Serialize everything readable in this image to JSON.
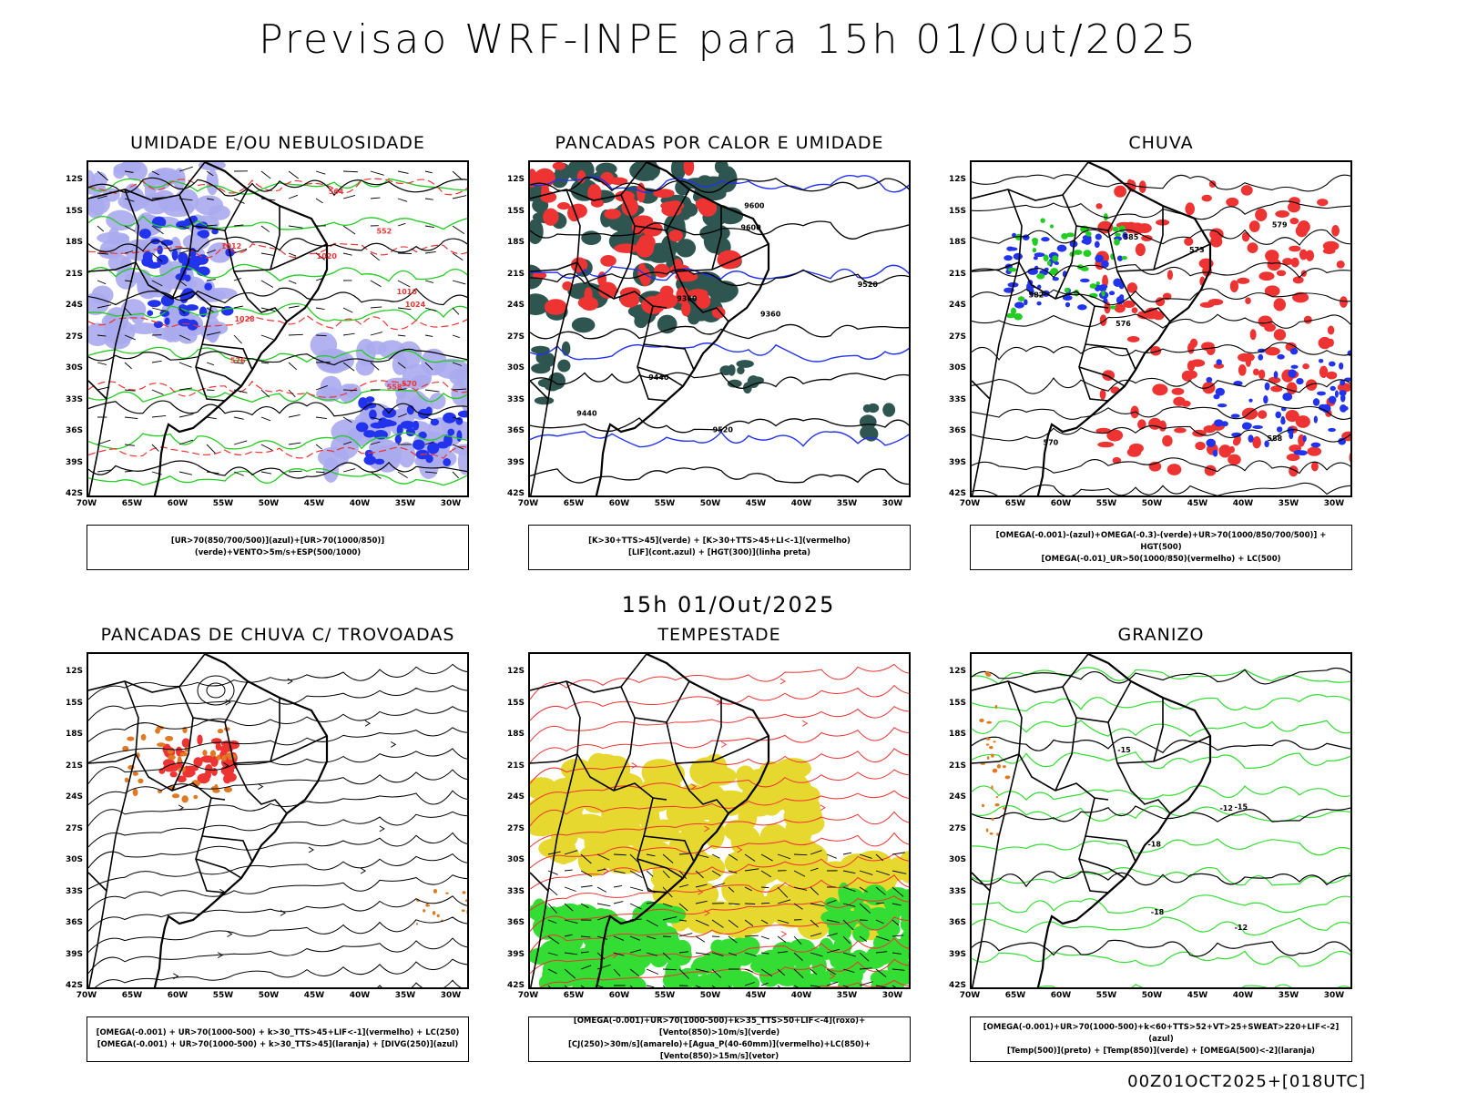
{
  "main_title": "Previsao WRF-INPE  para 15h 01/Out/2025",
  "mid_title": "15h 01/Out/2025",
  "footer": "00Z01OCT2025+[018UTC]",
  "lat_labels": [
    "12S",
    "15S",
    "18S",
    "21S",
    "24S",
    "27S",
    "30S",
    "33S",
    "36S",
    "39S",
    "42S"
  ],
  "lon_labels": [
    "70W",
    "65W",
    "60W",
    "55W",
    "50W",
    "45W",
    "40W",
    "35W",
    "30W"
  ],
  "panels": [
    {
      "title": "UMIDADE E/OU NEBULOSIDADE",
      "legend1": "[UR>70(850/700/500)](azul)+[UR>70(1000/850)](verde)+VENTO>5m/s+ESP(500/1000)",
      "legend2": "",
      "contour_labels": [
        "1012",
        "1016",
        "1020",
        "1024",
        "1028",
        "570",
        "576",
        "564",
        "558",
        "552"
      ]
    },
    {
      "title": "PANCADAS POR CALOR E UMIDADE",
      "legend1": "[K>30+TTS>45](verde) + [K>30+TTS>45+LI<-1](vermelho)",
      "legend2": "[LIF](cont.azul) + [HGT(300)](linha preta)",
      "contour_labels": [
        "9600",
        "9520",
        "9440",
        "9360",
        "9520",
        "9440",
        "9360",
        "9600"
      ]
    },
    {
      "title": "CHUVA",
      "legend1": "[OMEGA(-0.001)-(azul)+OMEGA(-0.3)-(verde)+UR>70(1000/850/700/500)] + HGT(500)",
      "legend2": "[OMEGA(-0.01)_UR>50(1000/850)(vermelho) + LC(500)",
      "contour_labels": [
        "588",
        "582",
        "579",
        "576",
        "573",
        "570",
        "585"
      ]
    },
    {
      "title": "PANCADAS DE CHUVA C/ TROVOADAS",
      "legend1": "[OMEGA(-0.001) + UR>70(1000-500) + k>30_TTS>45+LIF<-1](vermelho) + LC(250)",
      "legend2": "[OMEGA(-0.001) + UR>70(1000-500) + k>30_TTS>45](laranja) + [DIVG(250)](azul)",
      "contour_labels": []
    },
    {
      "title": "TEMPESTADE",
      "legend1": "[OMEGA(-0.001)+UR>70(1000-500)+k>35_TTS>50+LIF<-4](roxo)+[Vento(850)>10m/s](verde)",
      "legend2": "[CJ(250)>30m/s](amarelo)+[Agua_P(40-60mm)](vermelho)+LC(850)+[Vento(850)>15m/s](vetor)",
      "contour_labels": []
    },
    {
      "title": "GRANIZO",
      "legend1": "[OMEGA(-0.001)+UR>70(1000-500)+k<60+TTS>52+VT>25+SWEAT>220+LIF<-2](azul)",
      "legend2": "[Temp(500)](preto) + [Temp(850)](verde) + [OMEGA(500)<-2](laranja)",
      "contour_labels": [
        "-12",
        "-12",
        "-15",
        "-18",
        "-18",
        "-15"
      ]
    }
  ],
  "colors": {
    "red": "#ee3333",
    "green": "#22cc22",
    "blue": "#2233ee",
    "lavender": "#aaaaee",
    "teal": "#2e5550",
    "yellow": "#e6d82e",
    "orange": "#e07a22",
    "bright_green": "#33dd33"
  }
}
